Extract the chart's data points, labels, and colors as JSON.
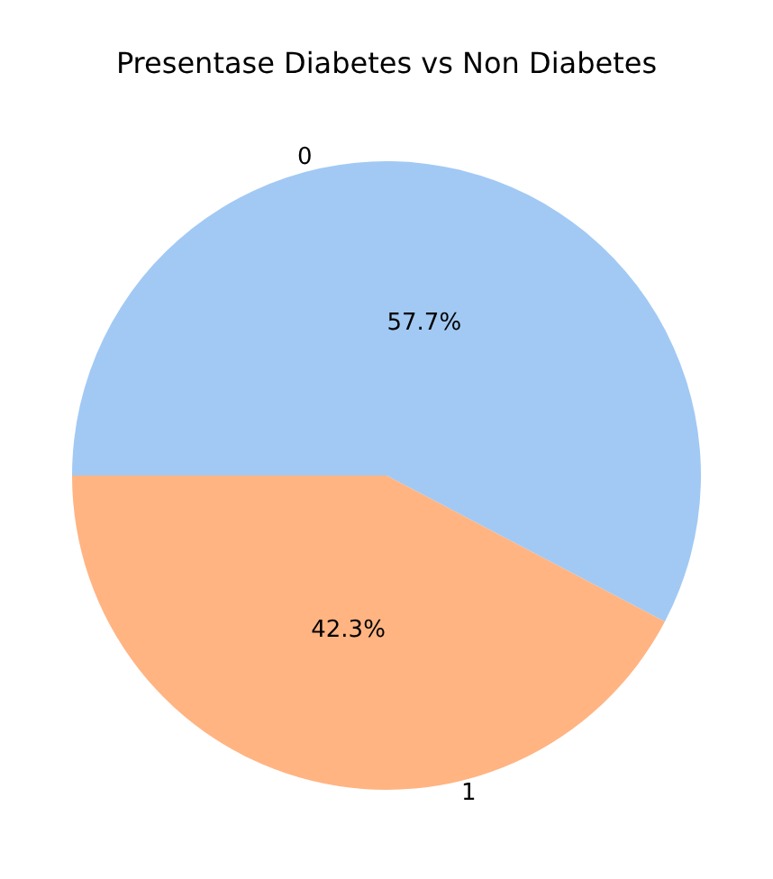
{
  "chart_data": {
    "type": "pie",
    "title": "Presentase Diabetes vs Non Diabetes",
    "categories": [
      "0",
      "1"
    ],
    "values": [
      57.7,
      42.3
    ],
    "colors": [
      "#a1c9f4",
      "#ffb482"
    ],
    "value_labels": [
      "57.7%",
      "42.3%"
    ],
    "legend": false
  }
}
